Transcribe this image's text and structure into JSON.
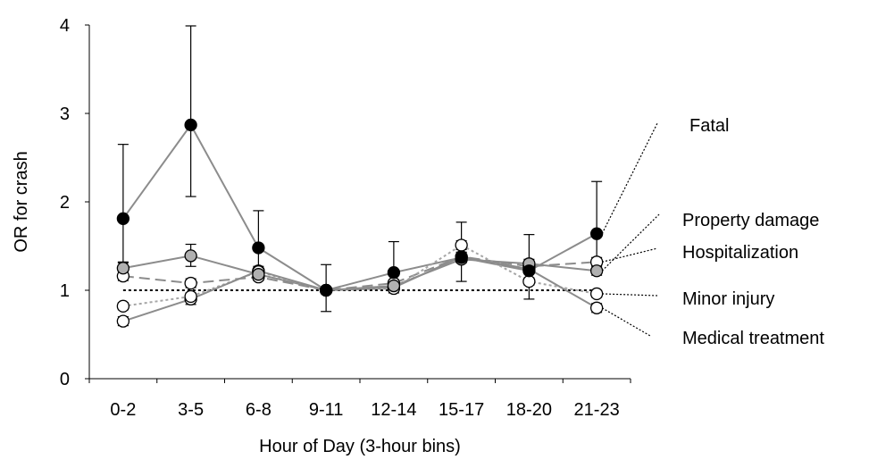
{
  "chart_data": {
    "type": "line",
    "title": "",
    "xlabel": "Hour of Day (3-hour bins)",
    "ylabel": "OR for crash",
    "categories": [
      "0-2",
      "3-5",
      "6-8",
      "9-11",
      "12-14",
      "15-17",
      "18-20",
      "21-23"
    ],
    "yticks": [
      0,
      1,
      2,
      3,
      4
    ],
    "ylim": [
      0,
      4
    ],
    "grid": false,
    "reference_line": {
      "y": 1,
      "style": "dotted",
      "color": "#000000"
    },
    "series": [
      {
        "name": "Fatal",
        "values": [
          1.81,
          2.87,
          1.48,
          1.0,
          1.2,
          1.37,
          1.22,
          1.64
        ],
        "err_low": [
          1.32,
          2.06,
          1.16,
          0.76,
          0.97,
          1.1,
          0.9,
          1.2
        ],
        "err_high": [
          2.65,
          3.99,
          1.9,
          1.29,
          1.55,
          1.77,
          1.63,
          2.23
        ],
        "marker_fill": "#000000",
        "line_color": "#8c8c8c",
        "line_style": "solid"
      },
      {
        "name": "Property damage",
        "values": [
          1.25,
          1.39,
          1.18,
          1.0,
          1.05,
          1.35,
          1.3,
          1.22
        ],
        "err_low": [
          1.19,
          1.27,
          1.12,
          0.98,
          1.01,
          1.31,
          1.25,
          1.17
        ],
        "err_high": [
          1.31,
          1.52,
          1.24,
          1.02,
          1.09,
          1.4,
          1.35,
          1.28
        ],
        "marker_fill": "#b0b0b0",
        "line_color": "#8c8c8c",
        "line_style": "solid"
      },
      {
        "name": "Hospitalization",
        "values": [
          1.16,
          1.08,
          1.15,
          1.0,
          1.08,
          1.38,
          1.27,
          1.32
        ],
        "err_low": [
          1.11,
          1.03,
          1.11,
          0.98,
          1.04,
          1.33,
          1.23,
          1.27
        ],
        "err_high": [
          1.21,
          1.13,
          1.19,
          1.02,
          1.12,
          1.43,
          1.31,
          1.37
        ],
        "marker_fill": "#ffffff",
        "line_color": "#8c8c8c",
        "line_style": "dashed"
      },
      {
        "name": "Minor injury",
        "values": [
          0.82,
          0.93,
          1.21,
          1.0,
          1.02,
          1.51,
          1.1,
          0.96
        ],
        "err_low": [
          0.78,
          0.89,
          1.17,
          0.98,
          0.99,
          1.46,
          1.06,
          0.92
        ],
        "err_high": [
          0.86,
          0.97,
          1.25,
          1.02,
          1.05,
          1.56,
          1.14,
          1.0
        ],
        "marker_fill": "#ffffff",
        "line_color": "#a6a6a6",
        "line_style": "dotted"
      },
      {
        "name": "Medical treatment",
        "values": [
          0.65,
          0.9,
          1.22,
          1.0,
          1.03,
          1.38,
          1.24,
          0.8
        ],
        "err_low": [
          0.6,
          0.84,
          1.17,
          0.98,
          1.0,
          1.33,
          1.2,
          0.75
        ],
        "err_high": [
          0.7,
          0.96,
          1.27,
          1.02,
          1.06,
          1.43,
          1.28,
          0.85
        ],
        "marker_fill": "#ffffff",
        "line_color": "#8c8c8c",
        "line_style": "solid"
      }
    ]
  }
}
